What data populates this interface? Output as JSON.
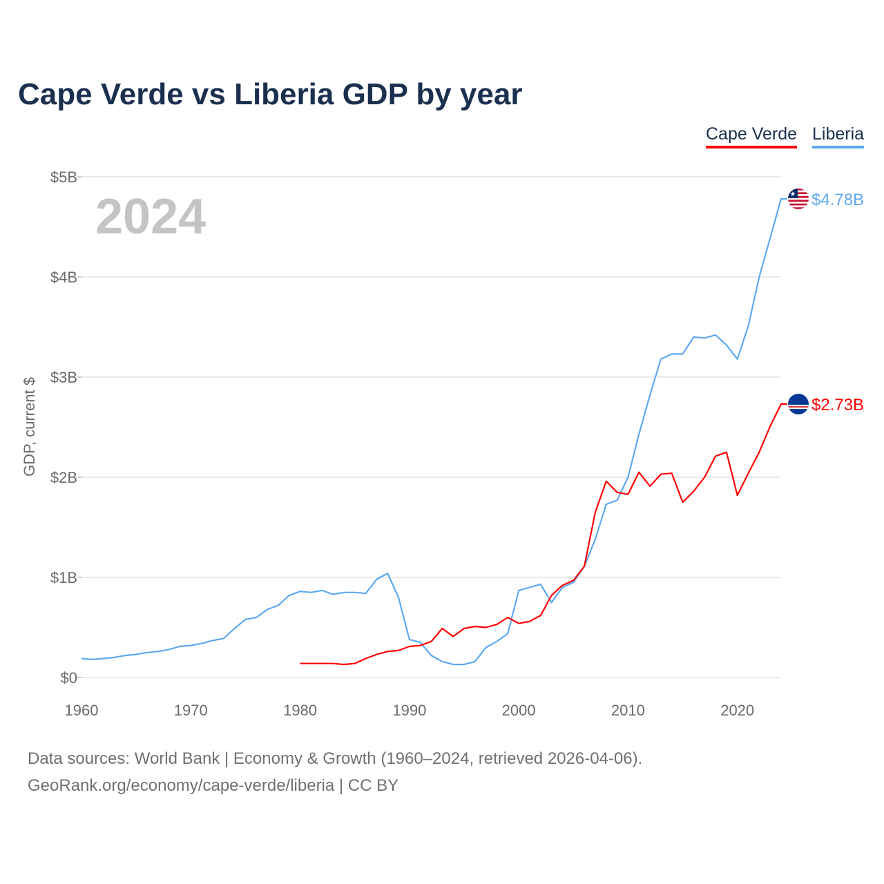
{
  "chart_data": {
    "type": "line",
    "title": "Cape Verde vs Liberia GDP by year",
    "xlabel": "",
    "ylabel": "GDP, current $",
    "xlim": [
      1960,
      2024
    ],
    "ylim": [
      0,
      5
    ],
    "x_ticks": [
      1960,
      1970,
      1980,
      1990,
      2000,
      2010,
      2020
    ],
    "x_tick_labels": [
      "1960",
      "1970",
      "1980",
      "1990",
      "2000",
      "2010",
      "2020"
    ],
    "y_ticks": [
      0,
      1,
      2,
      3,
      4,
      5
    ],
    "y_tick_labels": [
      "$0",
      "$1B",
      "$2B",
      "$3B",
      "$4B",
      "$5B"
    ],
    "grid": true,
    "legend_placement": "top-right",
    "year_watermark": "2024",
    "series": [
      {
        "name": "Cape Verde",
        "color": "#ff0000",
        "end_label": "$2.73B",
        "flag": "cape-verde-flag",
        "start_year": 1980,
        "values": [
          0.14,
          0.14,
          0.14,
          0.14,
          0.13,
          0.14,
          0.19,
          0.23,
          0.26,
          0.27,
          0.31,
          0.32,
          0.36,
          0.49,
          0.41,
          0.49,
          0.51,
          0.5,
          0.53,
          0.6,
          0.54,
          0.56,
          0.62,
          0.82,
          0.92,
          0.97,
          1.11,
          1.65,
          1.96,
          1.85,
          1.83,
          2.05,
          1.91,
          2.03,
          2.04,
          1.75,
          1.86,
          2.0,
          2.21,
          2.25,
          1.82,
          2.04,
          2.25,
          2.51,
          2.73
        ]
      },
      {
        "name": "Liberia",
        "color": "#5da9ef",
        "end_label": "$4.78B",
        "flag": "liberia-flag",
        "start_year": 1960,
        "values": [
          0.19,
          0.18,
          0.19,
          0.2,
          0.22,
          0.23,
          0.25,
          0.26,
          0.28,
          0.31,
          0.32,
          0.34,
          0.37,
          0.39,
          0.49,
          0.58,
          0.6,
          0.68,
          0.72,
          0.82,
          0.86,
          0.85,
          0.87,
          0.83,
          0.85,
          0.85,
          0.84,
          0.98,
          1.04,
          0.8,
          0.38,
          0.35,
          0.22,
          0.16,
          0.13,
          0.13,
          0.16,
          0.3,
          0.36,
          0.44,
          0.87,
          0.9,
          0.93,
          0.75,
          0.9,
          0.95,
          1.11,
          1.38,
          1.73,
          1.77,
          2.0,
          2.43,
          2.82,
          3.18,
          3.23,
          3.23,
          3.4,
          3.39,
          3.42,
          3.32,
          3.18,
          3.51,
          4.0,
          4.39,
          4.78
        ]
      }
    ]
  },
  "footer": {
    "line1": "Data sources: World Bank | Economy & Growth (1960–2024, retrieved 2026-04-06).",
    "line2": "GeoRank.org/economy/cape-verde/liberia | CC BY"
  }
}
